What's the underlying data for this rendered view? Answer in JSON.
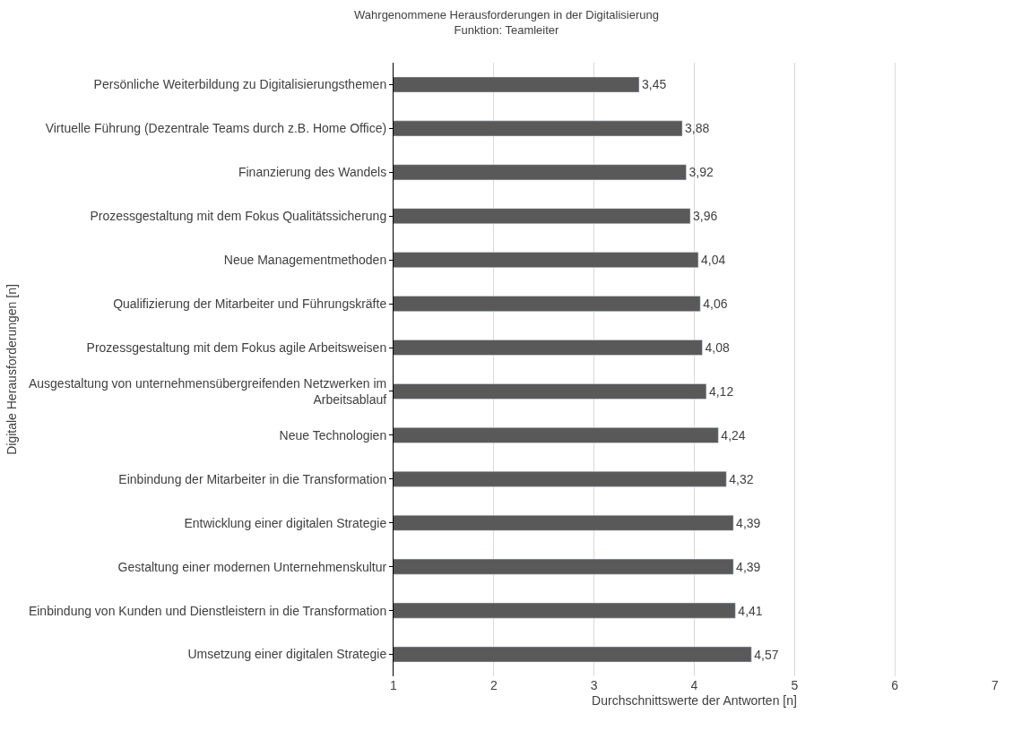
{
  "chart_data": {
    "type": "bar",
    "orientation": "horizontal",
    "title": "Wahrgenommene Herausforderungen in der Digitalisierung",
    "subtitle": "Funktion: Teamleiter",
    "xlabel": "Durchschnittswerte der Antworten [n]",
    "ylabel": "Digitale Herausforderungen [n]",
    "categories": [
      "Persönliche Weiterbildung zu Digitalisierungsthemen",
      "Virtuelle Führung (Dezentrale Teams durch z.B. Home Office)",
      "Finanzierung des Wandels",
      "Prozessgestaltung mit dem Fokus Qualitätssicherung",
      "Neue Managementmethoden",
      "Qualifizierung der Mitarbeiter und Führungskräfte",
      "Prozessgestaltung mit dem Fokus agile Arbeitsweisen",
      "Ausgestaltung von unternehmensübergreifenden Netzwerken im Arbeitsablauf",
      "Neue Technologien",
      "Einbindung der Mitarbeiter in die Transformation",
      "Entwicklung einer digitalen Strategie",
      "Gestaltung einer modernen Unternehmenskultur",
      "Einbindung von Kunden und Dienstleistern in die Transformation",
      "Umsetzung einer digitalen Strategie"
    ],
    "values": [
      3.45,
      3.88,
      3.92,
      3.96,
      4.04,
      4.06,
      4.08,
      4.12,
      4.24,
      4.32,
      4.39,
      4.39,
      4.41,
      4.57
    ],
    "value_labels": [
      "3,45",
      "3,88",
      "3,92",
      "3,96",
      "4,04",
      "4,06",
      "4,08",
      "4,12",
      "4,24",
      "4,32",
      "4,39",
      "4,39",
      "4,41",
      "4,57"
    ],
    "color": "#595959",
    "xlim": [
      1,
      7
    ],
    "xticks": [
      1,
      2,
      3,
      4,
      5,
      6,
      7
    ],
    "grid": "x"
  }
}
